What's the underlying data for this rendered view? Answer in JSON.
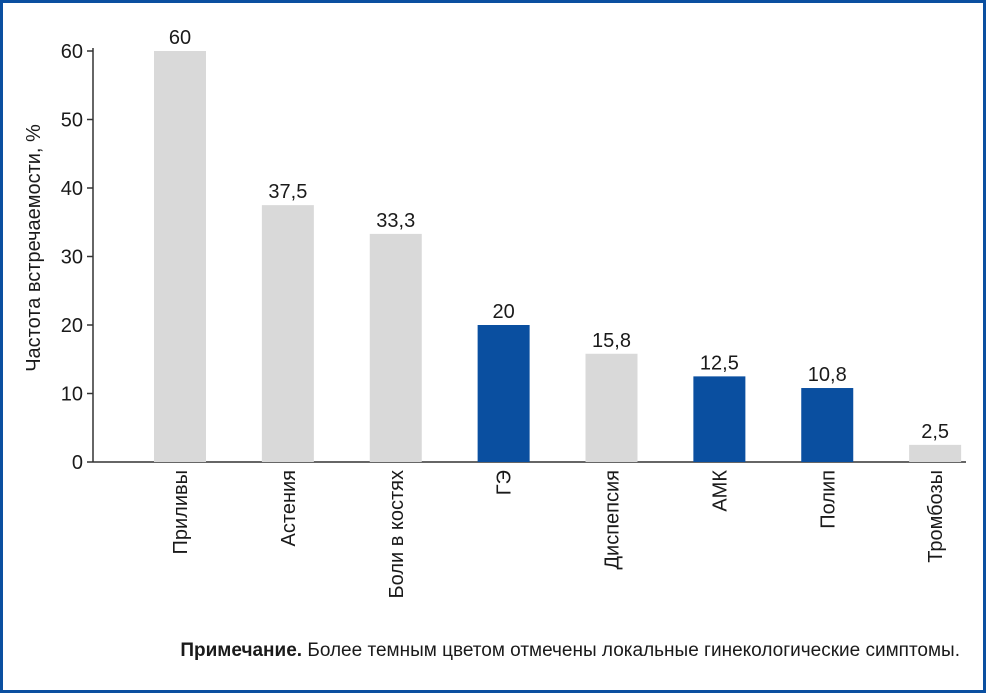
{
  "chart_data": {
    "type": "bar",
    "title": "",
    "xlabel": "",
    "ylabel": "Частота встречаемости, %",
    "ylim": [
      0,
      60
    ],
    "yticks": [
      0,
      10,
      20,
      30,
      40,
      50,
      60
    ],
    "categories": [
      "Приливы",
      "Астения",
      "Боли в костях",
      "ГЭ",
      "Диспепсия",
      "АМК",
      "Полип",
      "Тромбозы"
    ],
    "values": [
      60,
      37.5,
      33.3,
      20,
      15.8,
      12.5,
      10.8,
      2.5
    ],
    "value_labels": [
      "60",
      "37,5",
      "33,3",
      "20",
      "15,8",
      "12,5",
      "10,8",
      "2,5"
    ],
    "local_symptom": [
      false,
      false,
      false,
      true,
      false,
      true,
      true,
      false
    ],
    "colors": {
      "general": "#d9d9d9",
      "local": "#0a4fa0",
      "frame": "#0a4fa0",
      "axis": "#333333"
    }
  },
  "note": {
    "label": "Примечание.",
    "text": "Более темным цветом отмечены локальные гинекологические симптомы."
  }
}
